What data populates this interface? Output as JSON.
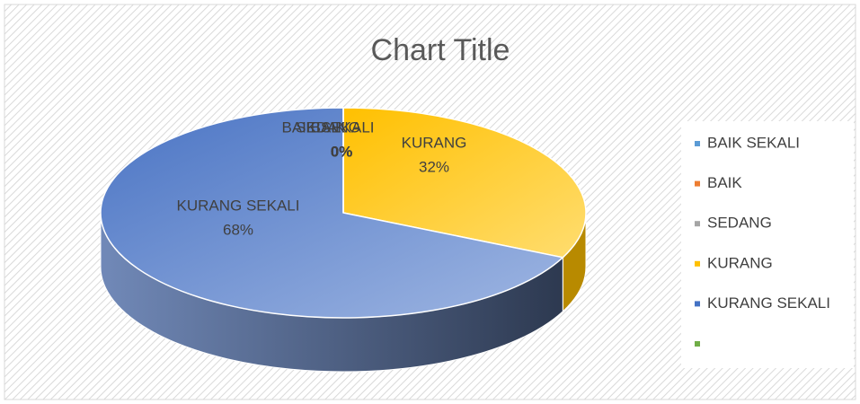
{
  "chart_data": {
    "type": "pie3d",
    "title": "Chart Title",
    "categories": [
      "BAIK SEKALI",
      "BAIK",
      "SEDANG",
      "KURANG",
      "KURANG SEKALI",
      null
    ],
    "values": [
      0,
      0,
      0,
      32,
      68,
      0
    ],
    "value_labels": [
      "0%",
      "0%",
      "0%",
      "32%",
      "68%",
      null
    ],
    "colors": [
      "#5b9bd5",
      "#ed7d31",
      "#a5a5a5",
      "#ffc000",
      "#4472c4",
      "#70ad47"
    ],
    "legend": "right"
  }
}
